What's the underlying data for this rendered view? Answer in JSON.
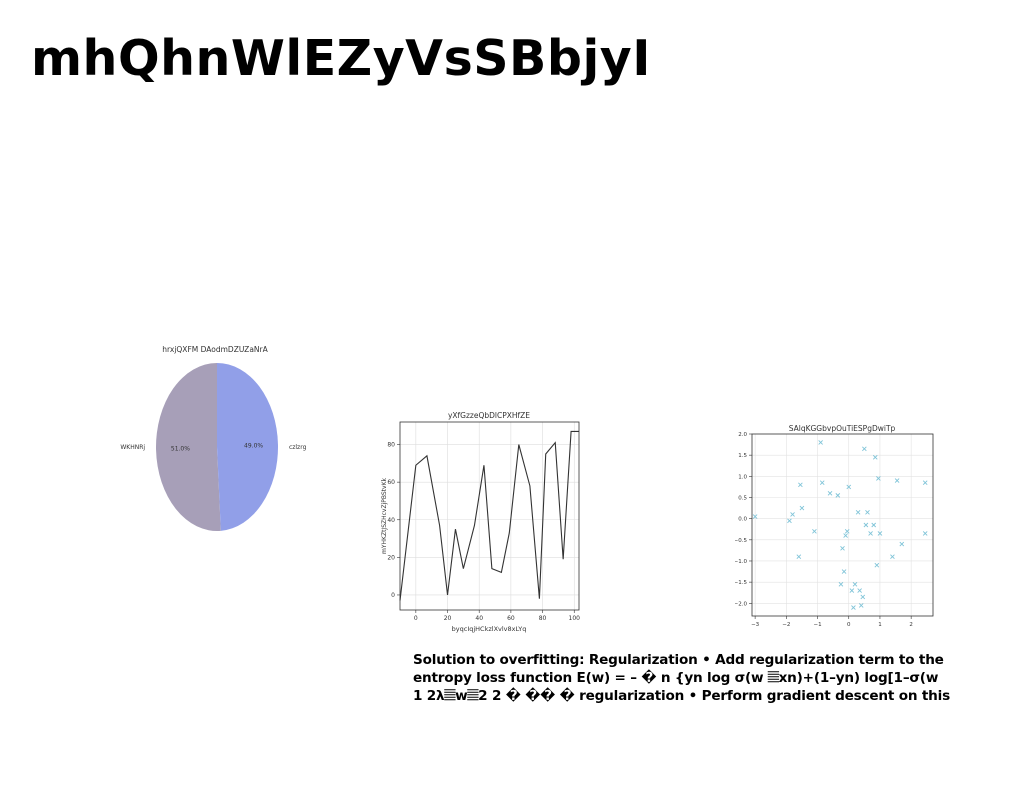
{
  "slide": {
    "title": "mhQhnWlEZyVsSBbjyI",
    "body_text": "Solution to overfitting: Regularization • Add regularization term to the\nentropy loss function E(w) = – � n {yn log σ(w 𝄚xn)+(1–yn) log[1–σ(w\n1 2λ𝄚w𝄚2 2 � �� � regularization • Perform gradient descent on this"
  },
  "chart_data": [
    {
      "type": "pie",
      "title": "hrxjQXFM DAodmDZUZaNrA",
      "slices": [
        {
          "label": "WKHNRj",
          "value": 51.0,
          "pct_label": "51.0%",
          "color": "#a79fb8"
        },
        {
          "label": "czlzrg",
          "value": 49.0,
          "pct_label": "49.0%",
          "color": "#919fe8"
        }
      ]
    },
    {
      "type": "line",
      "title": "yXfGzzeQbDlCPXHfZE",
      "xlabel": "byqcIqjHCkzlXvlv8xLYq",
      "ylabel": "mYHKZtJSZHcvZjPBStvKk",
      "xlim": [
        -10,
        103
      ],
      "ylim": [
        -8,
        92
      ],
      "xticks": [
        0,
        20,
        40,
        60,
        80,
        100
      ],
      "yticks": [
        0,
        20,
        40,
        60,
        80
      ],
      "color": "#333333",
      "grid": true,
      "x": [
        -10,
        0,
        7,
        15,
        20,
        25,
        30,
        37,
        43,
        48,
        54,
        59,
        65,
        72,
        78,
        82,
        88,
        93,
        98,
        103
      ],
      "y": [
        -3,
        69,
        74,
        37,
        0,
        35,
        14,
        37,
        69,
        14,
        12,
        33,
        80,
        58,
        -2,
        75,
        81,
        19,
        87,
        87
      ]
    },
    {
      "type": "scatter",
      "title": "SAlqKGGbvpOuTiESPgDwiTp",
      "xlim": [
        -3.1,
        2.7
      ],
      "ylim": [
        -2.3,
        2.0
      ],
      "xticks": [
        -3,
        -2,
        -1,
        0,
        1,
        2
      ],
      "ytick_labels": [
        "2.0",
        "1.5",
        "1.0",
        "0.5",
        "0.0",
        "−0.5",
        "−1.0",
        "−1.5",
        "−2.0"
      ],
      "yticks": [
        2.0,
        1.5,
        1.0,
        0.5,
        0.0,
        -0.5,
        -1.0,
        -1.5,
        -2.0
      ],
      "xtick_labels": [
        "−3",
        "−2",
        "−1",
        "0",
        "1",
        "2"
      ],
      "marker": "x",
      "color": "#7fc4d8",
      "grid": true,
      "points": [
        [
          -3.0,
          0.05
        ],
        [
          -1.9,
          -0.05
        ],
        [
          -1.8,
          0.1
        ],
        [
          -1.6,
          -0.9
        ],
        [
          -1.55,
          0.8
        ],
        [
          -1.5,
          0.25
        ],
        [
          -1.1,
          -0.3
        ],
        [
          -0.9,
          1.8
        ],
        [
          -0.85,
          0.85
        ],
        [
          -0.6,
          0.6
        ],
        [
          -0.35,
          0.55
        ],
        [
          -0.25,
          -1.55
        ],
        [
          -0.2,
          -0.7
        ],
        [
          -0.15,
          -1.25
        ],
        [
          -0.1,
          -0.4
        ],
        [
          -0.05,
          -0.3
        ],
        [
          0.0,
          0.75
        ],
        [
          0.1,
          -1.7
        ],
        [
          0.15,
          -2.1
        ],
        [
          0.2,
          -1.55
        ],
        [
          0.3,
          0.15
        ],
        [
          0.35,
          -1.7
        ],
        [
          0.4,
          -2.05
        ],
        [
          0.45,
          -1.85
        ],
        [
          0.5,
          1.65
        ],
        [
          0.55,
          -0.15
        ],
        [
          0.6,
          0.15
        ],
        [
          0.7,
          -0.35
        ],
        [
          0.8,
          -0.15
        ],
        [
          0.85,
          1.45
        ],
        [
          0.9,
          -1.1
        ],
        [
          0.95,
          0.95
        ],
        [
          1.0,
          -0.35
        ],
        [
          1.4,
          -0.9
        ],
        [
          1.55,
          0.9
        ],
        [
          1.7,
          -0.6
        ],
        [
          2.45,
          -0.35
        ],
        [
          2.45,
          0.85
        ]
      ]
    }
  ]
}
